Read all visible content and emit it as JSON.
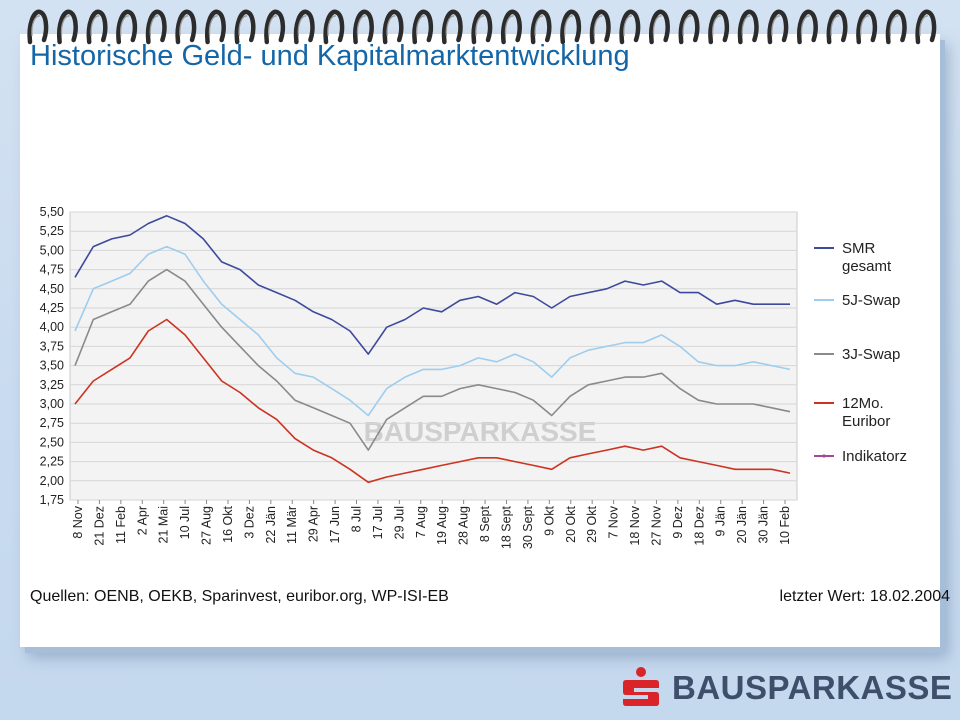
{
  "title": "Historische Geld- und Kapitalmarktentwicklung",
  "footer": {
    "sources": "Quellen: OENB, OEKB, Sparinvest, euribor.org, WP-ISI-EB",
    "last_value": "letzter Wert: 18.02.2004"
  },
  "brand": {
    "name": "BAUSPARKASSE",
    "color": "#3e4f6b",
    "icon_color": "#d9252a"
  },
  "watermark": "BAUSPARKASSE",
  "colors": {
    "title": "#1366a8",
    "background": "#cbdcf0",
    "plot_background": "#f3f3f3"
  },
  "chart_data": {
    "type": "line",
    "ylim": [
      1.75,
      5.5
    ],
    "y_ticks": [
      "5,50",
      "5,25",
      "5,00",
      "4,75",
      "4,50",
      "4,25",
      "4,00",
      "3,75",
      "3,50",
      "3,25",
      "3,00",
      "2,75",
      "2,50",
      "2,25",
      "2,00",
      "1,75"
    ],
    "x_ticks": [
      "8 Nov",
      "21 Dez",
      "11 Feb",
      "2 Apr",
      "21 Mai",
      "10 Jul",
      "27 Aug",
      "16 Okt",
      "3 Dez",
      "22 Jän",
      "11 Mär",
      "29 Apr",
      "17 Jun",
      "8 Jul",
      "17 Jul",
      "29 Jul",
      "7 Aug",
      "19 Aug",
      "28 Aug",
      "8 Sept",
      "18 Sept",
      "30 Sept",
      "9 Okt",
      "20 Okt",
      "29 Okt",
      "7 Nov",
      "18 Nov",
      "27 Nov",
      "9 Dez",
      "18 Dez",
      "9 Jän",
      "20 Jän",
      "30 Jän",
      "10 Feb"
    ],
    "legend_position": "right",
    "grid": true,
    "series": [
      {
        "name": "SMR gesamt",
        "label_lines": [
          "SMR",
          "gesamt"
        ],
        "color": "#3d4a9c",
        "values": [
          4.65,
          5.05,
          5.15,
          5.2,
          5.35,
          5.45,
          5.35,
          5.15,
          4.85,
          4.75,
          4.55,
          4.45,
          4.35,
          4.2,
          4.1,
          3.95,
          3.65,
          4.0,
          4.1,
          4.25,
          4.2,
          4.35,
          4.4,
          4.3,
          4.45,
          4.4,
          4.25,
          4.4,
          4.45,
          4.5,
          4.6,
          4.55,
          4.6,
          4.45,
          4.45,
          4.3,
          4.35,
          4.3,
          4.3,
          4.3
        ]
      },
      {
        "name": "5J-Swap",
        "label_lines": [
          "5J-Swap"
        ],
        "color": "#9ecdee",
        "values": [
          3.95,
          4.5,
          4.6,
          4.7,
          4.95,
          5.05,
          4.95,
          4.6,
          4.3,
          4.1,
          3.9,
          3.6,
          3.4,
          3.35,
          3.2,
          3.05,
          2.85,
          3.2,
          3.35,
          3.45,
          3.45,
          3.5,
          3.6,
          3.55,
          3.65,
          3.55,
          3.35,
          3.6,
          3.7,
          3.75,
          3.8,
          3.8,
          3.9,
          3.75,
          3.55,
          3.5,
          3.5,
          3.55,
          3.5,
          3.45
        ]
      },
      {
        "name": "3J-Swap",
        "label_lines": [
          "3J-Swap"
        ],
        "color": "#8a8a8a",
        "values": [
          3.5,
          4.1,
          4.2,
          4.3,
          4.6,
          4.75,
          4.6,
          4.3,
          4.0,
          3.75,
          3.5,
          3.3,
          3.05,
          2.95,
          2.85,
          2.75,
          2.4,
          2.8,
          2.95,
          3.1,
          3.1,
          3.2,
          3.25,
          3.2,
          3.15,
          3.05,
          2.85,
          3.1,
          3.25,
          3.3,
          3.35,
          3.35,
          3.4,
          3.2,
          3.05,
          3.0,
          3.0,
          3.0,
          2.95,
          2.9
        ]
      },
      {
        "name": "12Mo. Euribor",
        "label_lines": [
          "12Mo.",
          "Euribor"
        ],
        "color": "#cc3322",
        "values": [
          3.0,
          3.3,
          3.45,
          3.6,
          3.95,
          4.1,
          3.9,
          3.6,
          3.3,
          3.15,
          2.95,
          2.8,
          2.55,
          2.4,
          2.3,
          2.15,
          1.98,
          2.05,
          2.1,
          2.15,
          2.2,
          2.25,
          2.3,
          2.3,
          2.25,
          2.2,
          2.15,
          2.3,
          2.35,
          2.4,
          2.45,
          2.4,
          2.45,
          2.3,
          2.25,
          2.2,
          2.15,
          2.15,
          2.15,
          2.1
        ]
      },
      {
        "name": "Indikatorz",
        "label_lines": [
          "Indikatorz"
        ],
        "color": "#a24a99",
        "values": []
      }
    ]
  }
}
